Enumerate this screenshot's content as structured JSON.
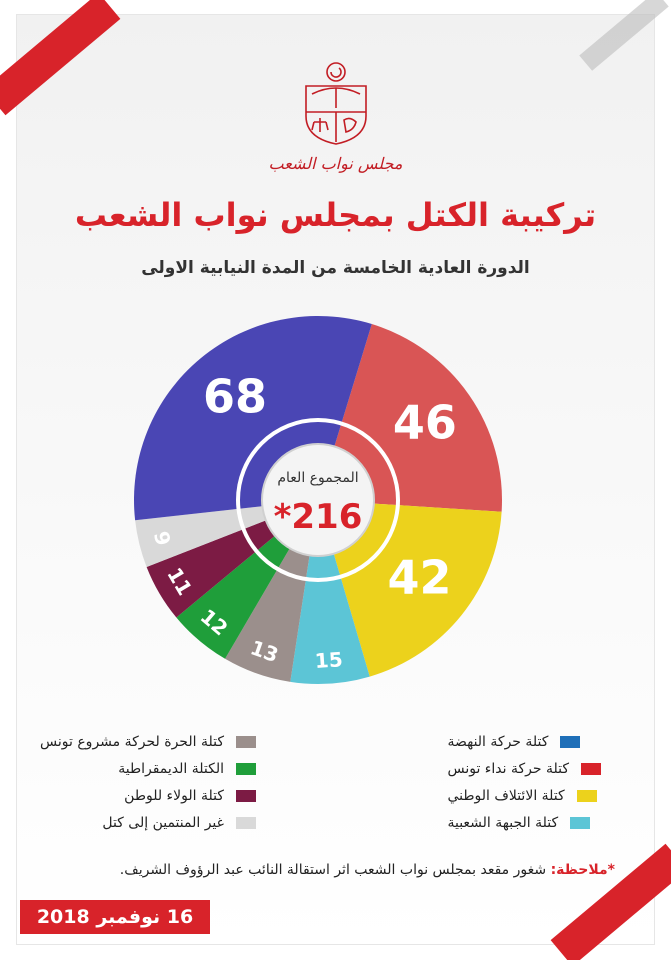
{
  "header": {
    "council_name": "مجلس نواب الشعب",
    "title": "تركيبة الكتل بمجلس نواب الشعب",
    "subtitle": "الدورة العادية الخامسة من المدة النيابية الاولى"
  },
  "chart_data": {
    "type": "pie",
    "center_label": "المجموع العام",
    "total_label": "*216",
    "slices": [
      {
        "name": "كتلة حركة نداء تونس",
        "value": 46,
        "color": "#d95555"
      },
      {
        "name": "كتلة الائتلاف الوطني",
        "value": 42,
        "color": "#ecd21c"
      },
      {
        "name": "كتلة الجبهة الشعبية",
        "value": 15,
        "color": "#5cc5d6"
      },
      {
        "name": "كتلة الحرة لحركة مشروع تونس",
        "value": 13,
        "color": "#9b8f8c"
      },
      {
        "name": "الكتلة الديمقراطية",
        "value": 12,
        "color": "#1f9e3a"
      },
      {
        "name": "كتلة الولاء للوطن",
        "value": 11,
        "color": "#7c1b44"
      },
      {
        "name": "غير المنتمين إلى كتل",
        "value": 9,
        "color": "#d9d9d9"
      },
      {
        "name": "كتلة حركة النهضة",
        "value": 68,
        "color": "#4a46b4"
      }
    ]
  },
  "legend_right": [
    {
      "label": "كتلة حركة النهضة",
      "color": "#1f6fb8"
    },
    {
      "label": "كتلة حركة نداء تونس",
      "color": "#d8232a"
    },
    {
      "label": "كتلة الائتلاف الوطني",
      "color": "#ecd21c"
    },
    {
      "label": "كتلة الجبهة الشعبية",
      "color": "#5cc5d6"
    }
  ],
  "legend_left": [
    {
      "label": "كتلة الحرة لحركة مشروع تونس",
      "color": "#9b8f8c"
    },
    {
      "label": "الكتلة الديمقراطية",
      "color": "#1f9e3a"
    },
    {
      "label": "كتلة الولاء للوطن",
      "color": "#7c1b44"
    },
    {
      "label": "غير المنتمين إلى كتل",
      "color": "#d9d9d9"
    }
  ],
  "note": {
    "key": "*ملاحظة:",
    "text": " شغور مقعد بمجلس نواب الشعب اثر استقالة النائب عبد الرؤوف الشريف."
  },
  "date": "16 نوفمبر 2018"
}
